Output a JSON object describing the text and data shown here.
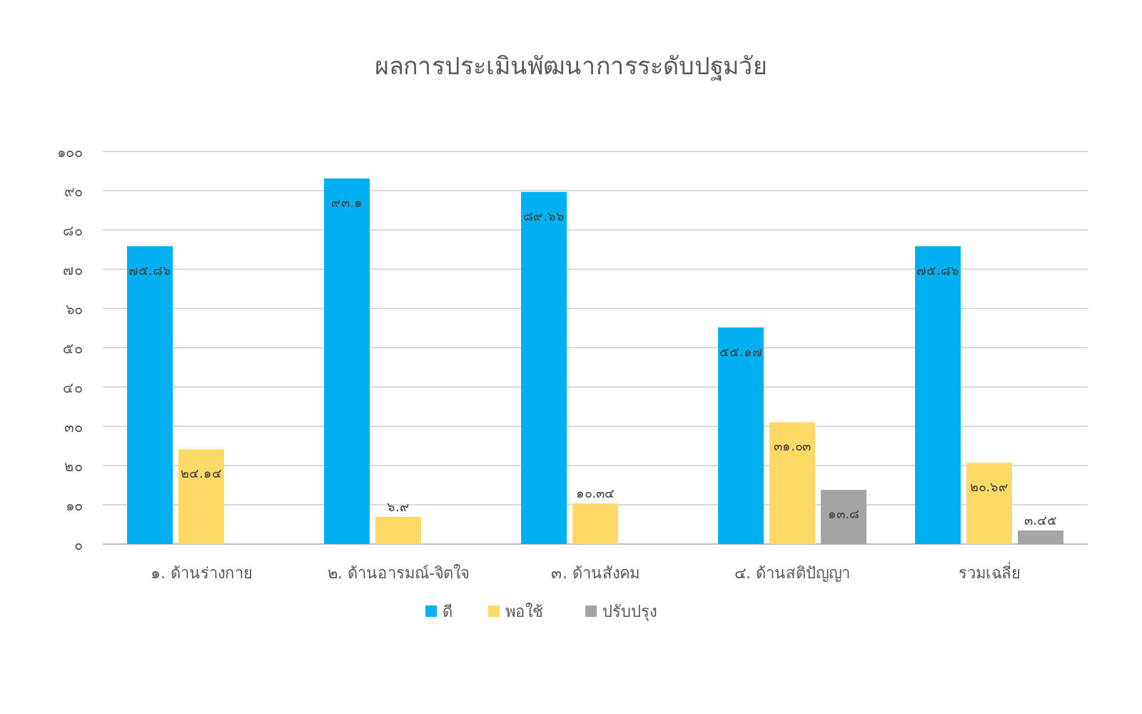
{
  "chart_data": {
    "type": "bar",
    "title": "ผลการประเมินพัฒนาการระดับปฐมวัย",
    "categories": [
      "๑. ด้านร่างกาย",
      "๒. ด้านอารมณ์-จิตใจ",
      "๓. ด้านสังคม",
      "๔. ด้านสติปัญญา",
      "รวมเฉลี่ย"
    ],
    "series": [
      {
        "name": "ดี",
        "color": "#00b0f0",
        "values": [
          75.86,
          93.1,
          89.66,
          55.17,
          75.86
        ],
        "value_labels": [
          "๗๕.๘๖",
          "๙๓.๑",
          "๘๙.๖๖",
          "๕๕.๑๗",
          "๗๕.๘๖"
        ]
      },
      {
        "name": "พอใช้",
        "color": "#ffd966",
        "values": [
          24.14,
          6.9,
          10.34,
          31.03,
          20.69
        ],
        "value_labels": [
          "๒๔.๑๔",
          "๖.๙",
          "๑๐.๓๔",
          "๓๑.๐๓",
          "๒๐.๖๙"
        ]
      },
      {
        "name": "ปรับปรุง",
        "color": "#a5a5a5",
        "values": [
          null,
          null,
          null,
          13.8,
          3.45
        ],
        "value_labels": [
          null,
          null,
          null,
          "๑๓.๘",
          "๓.๔๕"
        ]
      }
    ],
    "ylim": [
      0,
      100
    ],
    "yticks": [
      {
        "value": 0,
        "label": "๐"
      },
      {
        "value": 10,
        "label": "๑๐"
      },
      {
        "value": 20,
        "label": "๒๐"
      },
      {
        "value": 30,
        "label": "๓๐"
      },
      {
        "value": 40,
        "label": "๔๐"
      },
      {
        "value": 50,
        "label": "๕๐"
      },
      {
        "value": 60,
        "label": "๖๐"
      },
      {
        "value": 70,
        "label": "๗๐"
      },
      {
        "value": 80,
        "label": "๘๐"
      },
      {
        "value": 90,
        "label": "๙๐"
      },
      {
        "value": 100,
        "label": "๑๐๐"
      }
    ],
    "grid": "y",
    "legend": "bottom"
  }
}
